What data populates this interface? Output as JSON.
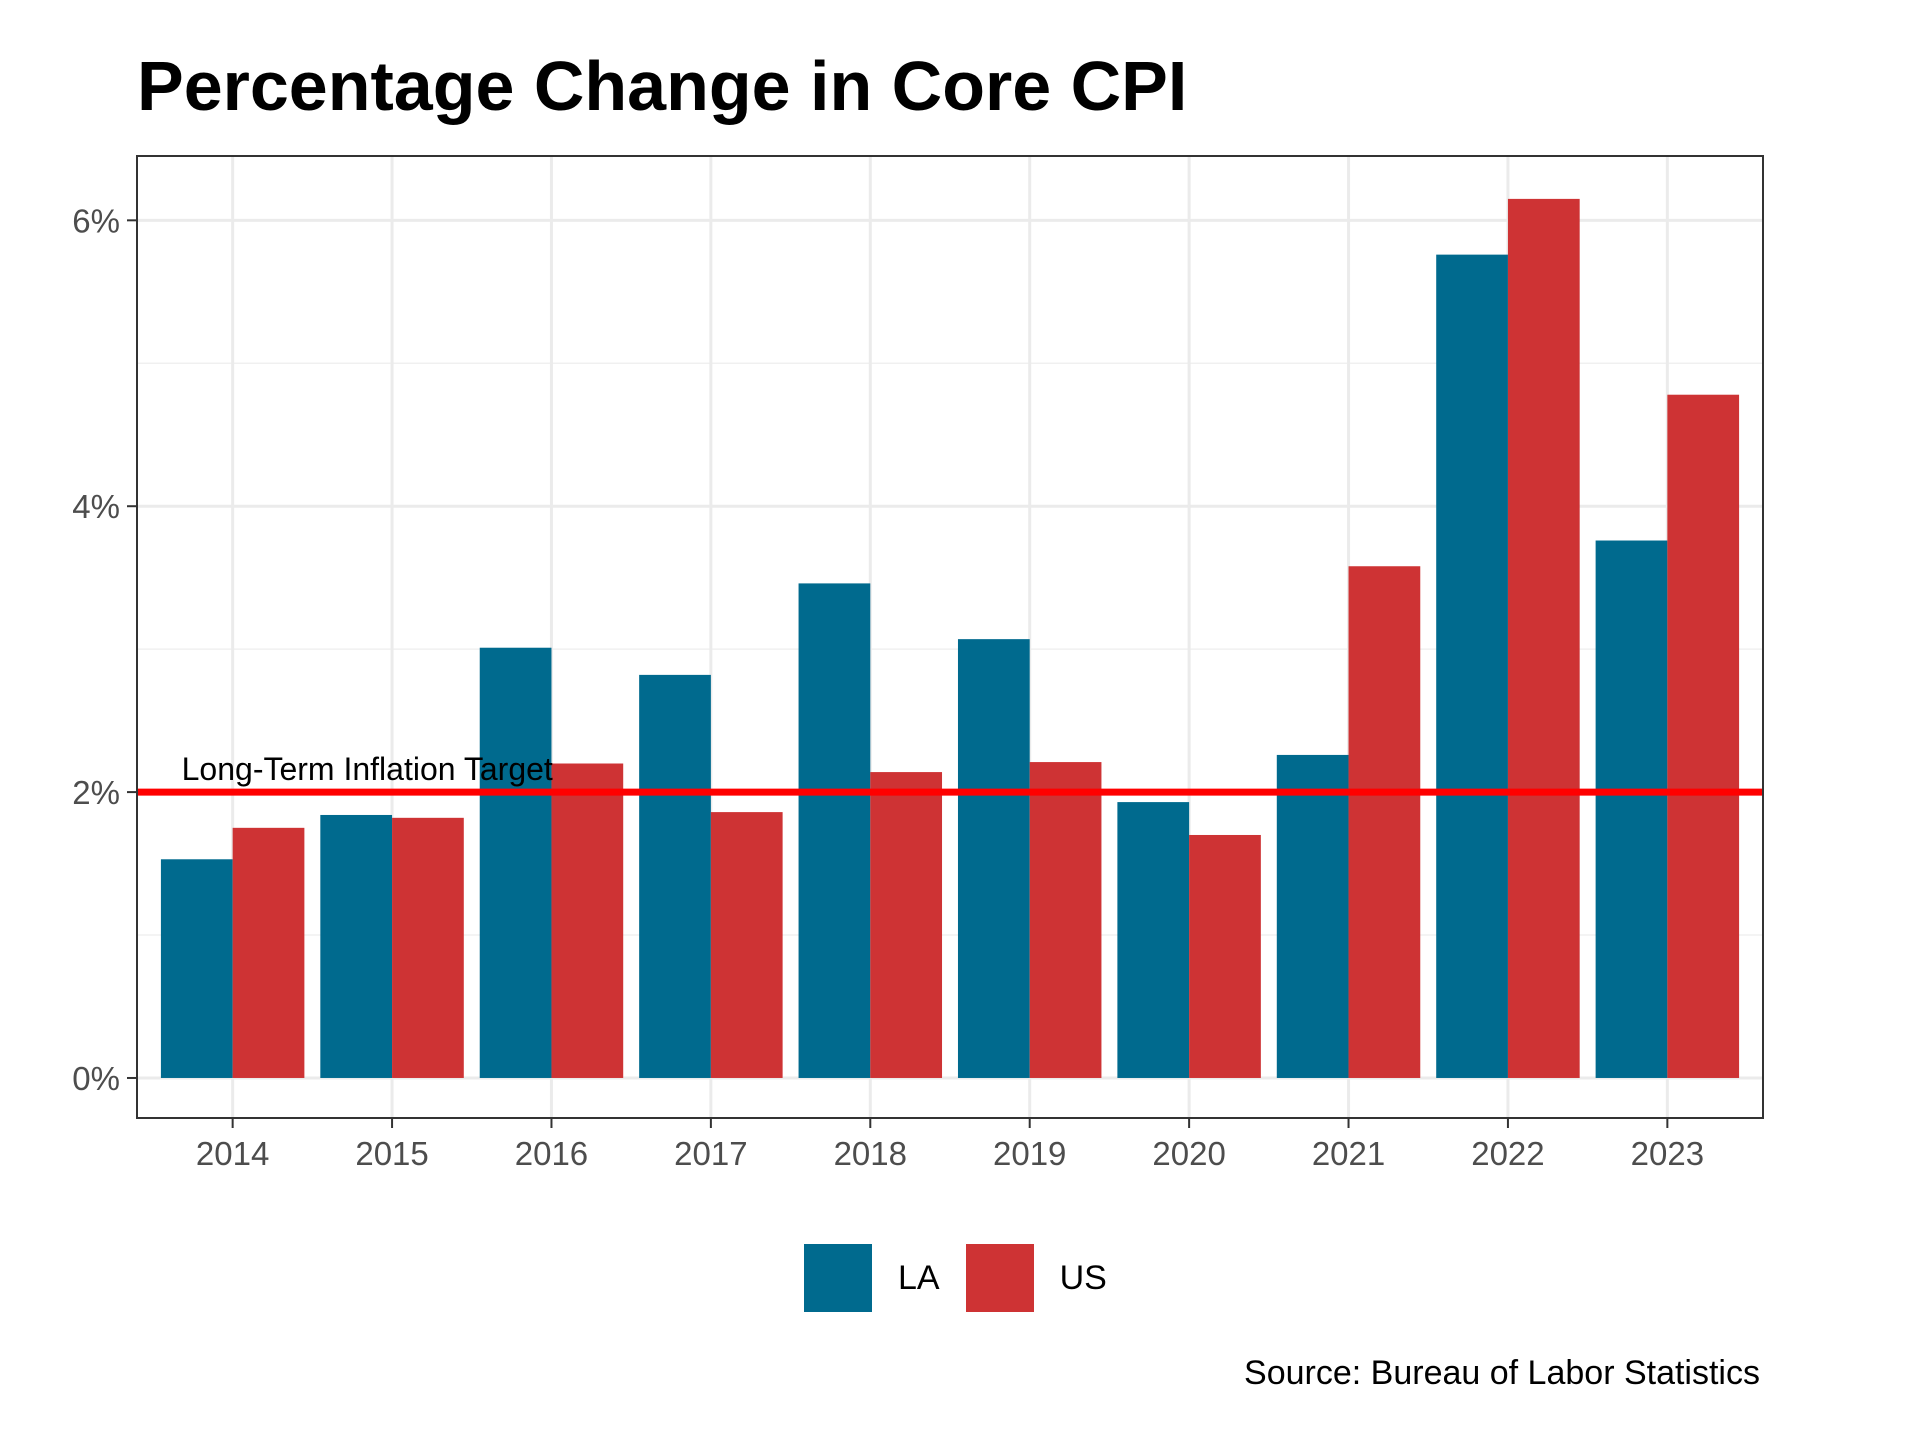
{
  "chart_data": {
    "type": "bar",
    "title": "Percentage Change in Core CPI",
    "categories": [
      "2014",
      "2015",
      "2016",
      "2017",
      "2018",
      "2019",
      "2020",
      "2021",
      "2022",
      "2023"
    ],
    "series": [
      {
        "name": "LA",
        "color": "#006a8e",
        "values": [
          1.53,
          1.84,
          3.01,
          2.82,
          3.46,
          3.07,
          1.93,
          2.26,
          5.76,
          3.76
        ]
      },
      {
        "name": "US",
        "color": "#ce3334",
        "values": [
          1.75,
          1.82,
          2.2,
          1.86,
          2.14,
          2.21,
          1.7,
          3.58,
          6.15,
          4.78
        ]
      }
    ],
    "ylim": [
      -0.28,
      6.45
    ],
    "yticks": [
      0,
      2,
      4,
      6
    ],
    "ytick_labels": [
      "0%",
      "2%",
      "4%",
      "6%"
    ],
    "xlabel": "",
    "ylabel": "",
    "grid": true,
    "legend_position": "bottom",
    "reference_line": {
      "value": 2,
      "label": "Long-Term Inflation Target",
      "color": "#ff0000"
    },
    "source": "Source: Bureau of Labor Statistics"
  }
}
